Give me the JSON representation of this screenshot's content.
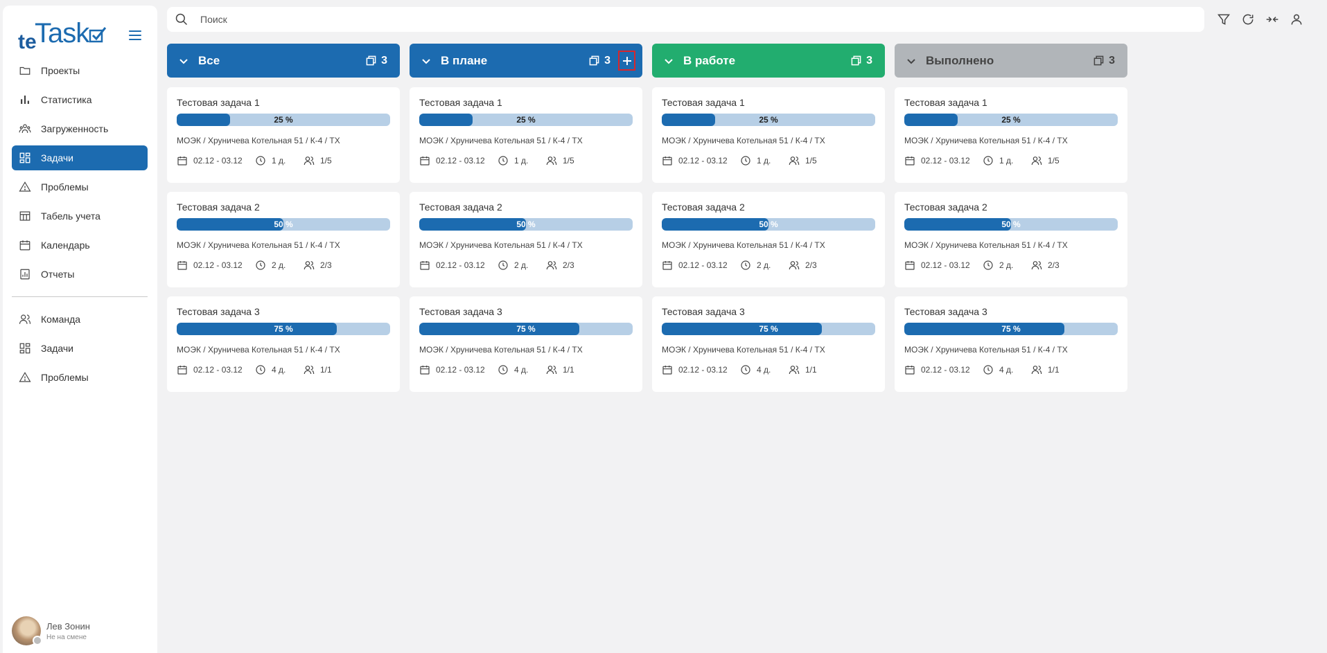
{
  "logo": {
    "te": "te",
    "task": "Task"
  },
  "search": {
    "placeholder": "Поиск"
  },
  "nav": {
    "main": [
      {
        "label": "Проекты",
        "icon": "folder-icon"
      },
      {
        "label": "Статистика",
        "icon": "bar-chart-icon"
      },
      {
        "label": "Загруженность",
        "icon": "users-icon"
      },
      {
        "label": "Задачи",
        "icon": "dashboard-icon",
        "active": true
      },
      {
        "label": "Проблемы",
        "icon": "warning-icon"
      },
      {
        "label": "Табель учета",
        "icon": "table-icon"
      },
      {
        "label": "Календарь",
        "icon": "calendar-icon"
      },
      {
        "label": "Отчеты",
        "icon": "report-icon"
      }
    ],
    "secondary": [
      {
        "label": "Команда",
        "icon": "team-icon"
      },
      {
        "label": "Задачи",
        "icon": "dashboard-icon"
      },
      {
        "label": "Проблемы",
        "icon": "warning-icon"
      }
    ]
  },
  "user": {
    "name": "Лев Зонин",
    "status": "Не на смене"
  },
  "columns": [
    {
      "title": "Все",
      "count": "3",
      "color": "#1c6bb0"
    },
    {
      "title": "В плане",
      "count": "3",
      "color": "#1c6bb0",
      "add": true
    },
    {
      "title": "В работе",
      "count": "3",
      "color": "#22ad6f"
    },
    {
      "title": "Выполнено",
      "count": "3",
      "color": "#b1b5b9"
    }
  ],
  "cards": [
    {
      "title": "Тестовая задача 1",
      "progress": 25,
      "progress_label": "25 %",
      "path": "МОЭК  /  Хруничева Котельная 51  /  К-4  /  ТХ",
      "dates": "02.12 - 03.12",
      "duration": "1 д.",
      "people": "1/5"
    },
    {
      "title": "Тестовая задача 2",
      "progress": 50,
      "progress_label": "50 %",
      "path": "МОЭК  /  Хруничева Котельная 51  /  К-4  /  ТХ",
      "dates": "02.12 - 03.12",
      "duration": "2 д.",
      "people": "2/3"
    },
    {
      "title": "Тестовая задача 3",
      "progress": 75,
      "progress_label": "75 %",
      "path": "МОЭК  /  Хруничева Котельная 51  /  К-4  /  ТХ",
      "dates": "02.12 - 03.12",
      "duration": "4 д.",
      "people": "1/1"
    }
  ]
}
